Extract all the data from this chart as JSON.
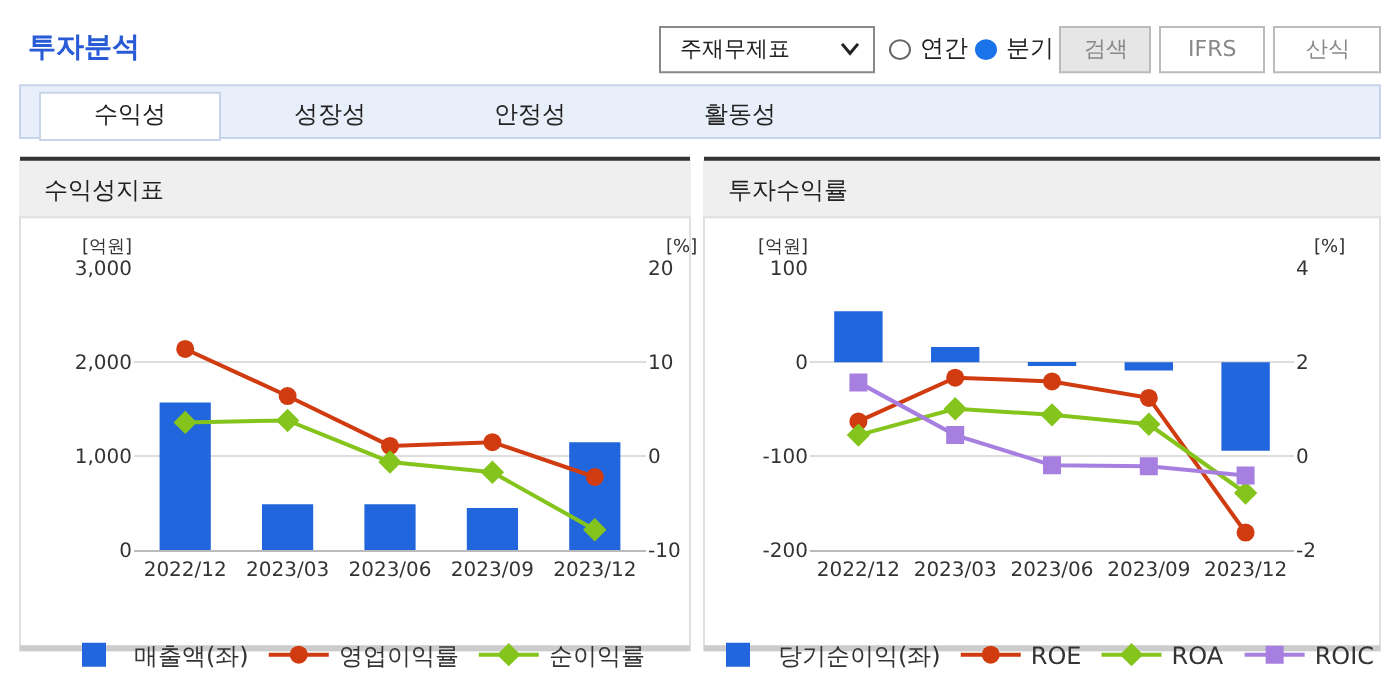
{
  "chart_data": [
    {
      "type": "other",
      "title": "투자분석",
      "annotations": [
        "주재무제표",
        "연간",
        "분기",
        "검색",
        "IFRS",
        "산식",
        "수익성",
        "성장성",
        "안정성",
        "활동성"
      ]
    },
    {
      "type": "bar",
      "title": "수익성지표",
      "ylabel": "[억원]",
      "y2label": "[%]",
      "categories": [
        "2022/12",
        "2023/03",
        "2023/06",
        "2023/09",
        "2023/12"
      ],
      "series": [
        {
          "name": "매출액(좌)",
          "type": "bar",
          "color": "#2266dd",
          "values": [
            1570,
            490,
            490,
            450,
            1150
          ]
        },
        {
          "name": "영업이익률",
          "type": "line",
          "axis": "y2",
          "marker": "circle",
          "color": "#d03c10",
          "values": [
            11.4,
            6.4,
            1.1,
            1.5,
            -2.2
          ]
        },
        {
          "name": "순이익률",
          "type": "line",
          "axis": "y2",
          "marker": "diamond",
          "color": "#84c41c",
          "values": [
            3.6,
            3.8,
            -0.6,
            -1.7,
            -7.8
          ]
        }
      ],
      "ylim": [
        0,
        3000
      ],
      "yticks": [
        0,
        {
          "value": 1000,
          "label": "1,000"
        },
        {
          "value": 2000,
          "label": "2,000"
        },
        {
          "value": 3000,
          "label": "3,000"
        }
      ],
      "y2lim": [
        -10,
        20
      ],
      "y2ticks": [
        -10,
        0,
        10,
        20
      ],
      "grid": "y",
      "legend": "bottom"
    },
    {
      "type": "bar",
      "title": "투자수익률",
      "ylabel": "[억원]",
      "y2label": "[%]",
      "categories": [
        "2022/12",
        "2023/03",
        "2023/06",
        "2023/09",
        "2023/12"
      ],
      "series": [
        {
          "name": "당기순이익(좌)",
          "type": "bar",
          "color": "#2266dd",
          "values": [
            54,
            16,
            -3,
            -9,
            -94
          ]
        },
        {
          "name": "ROE",
          "type": "line",
          "axis": "y2",
          "marker": "circle",
          "color": "#d03c10",
          "values": [
            0.74,
            1.67,
            1.59,
            1.24,
            -1.62
          ]
        },
        {
          "name": "ROA",
          "type": "line",
          "axis": "y2",
          "marker": "diamond",
          "color": "#84c41c",
          "values": [
            0.45,
            1.01,
            0.88,
            0.68,
            -0.78
          ]
        },
        {
          "name": "ROIC",
          "type": "line",
          "axis": "y2",
          "marker": "square",
          "color": "#a77fe0",
          "values": [
            1.57,
            0.45,
            -0.19,
            -0.21,
            -0.41
          ]
        }
      ],
      "ylim": [
        -200,
        100
      ],
      "yticks": [
        -200,
        -100,
        0,
        100
      ],
      "y2lim": [
        -2,
        4
      ],
      "y2ticks": [
        -2,
        0,
        2,
        4
      ],
      "grid": "y",
      "legend": "bottom"
    }
  ]
}
